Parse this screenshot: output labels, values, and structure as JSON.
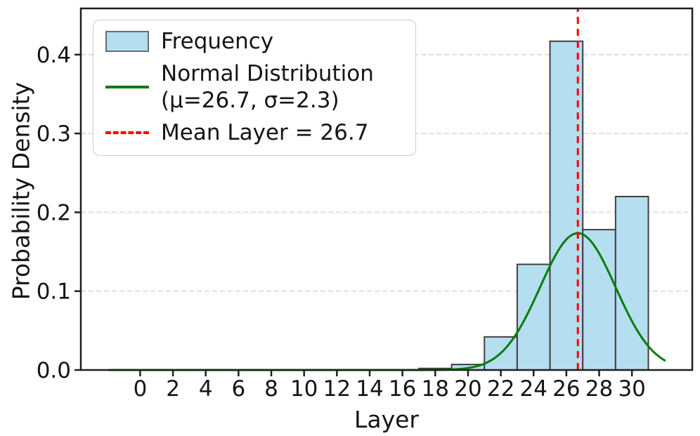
{
  "chart_data": {
    "type": "bar",
    "subtype": "histogram-with-normal-fit",
    "title": "",
    "xlabel": "Layer",
    "ylabel": "Probability Density",
    "xlim": [
      -3.62,
      33.68
    ],
    "ylim": [
      0,
      0.4586
    ],
    "xticks": [
      0,
      2,
      4,
      6,
      8,
      10,
      12,
      14,
      16,
      18,
      20,
      22,
      24,
      26,
      28,
      30
    ],
    "ytick_labels": [
      "0.0",
      "0.1",
      "0.2",
      "0.3",
      "0.4"
    ],
    "yticks": [
      0.0,
      0.1,
      0.2,
      0.3,
      0.4
    ],
    "grid": "horizontal-dashed",
    "histogram": {
      "label": "Frequency",
      "bin_edges": [
        17,
        19,
        21,
        23,
        25,
        27,
        29,
        31
      ],
      "densities": [
        0.002,
        0.007,
        0.042,
        0.134,
        0.417,
        0.178,
        0.22
      ]
    },
    "normal_curve": {
      "label_line1": "Normal Distribution",
      "label_line2": "(μ=26.7, σ=2.3)",
      "mu": 26.7,
      "sigma": 2.3,
      "peak_density": 0.173,
      "x_range": [
        -1.9,
        32.0
      ]
    },
    "mean_line": {
      "label": "Mean Layer = 26.7",
      "x": 26.7
    },
    "legend_position": "upper-left"
  },
  "colors": {
    "bar_fill": "#b5def1",
    "bar_edge": "#3f3f3f",
    "curve": "#067d06",
    "mean_line": "#ff0000",
    "grid": "#dcdcdc",
    "spine": "#1f1f1f",
    "text": "#151515",
    "legend_border": "#cccccc"
  }
}
